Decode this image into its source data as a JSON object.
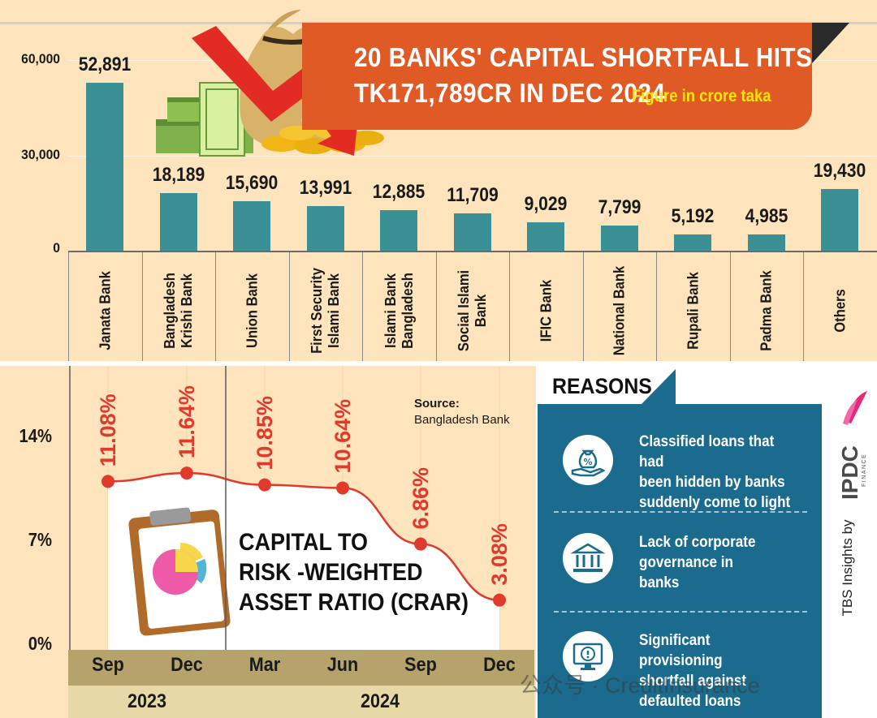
{
  "banner": {
    "title_line1": "20 BANKS' CAPITAL SHORTFALL HITS",
    "title_line2": "TK171,789CR IN DEC 2024",
    "note": "Figure in crore taka"
  },
  "colors": {
    "background": "#fde4bd",
    "banner": "#e05a26",
    "bar": "#3a9095",
    "line": "#e03a2c",
    "reasons_box": "#1a6b8e",
    "month_strip": "#b5a36b",
    "year_strip": "#e7d9a7"
  },
  "chart_data": [
    {
      "type": "bar",
      "ylim": [
        0,
        60000
      ],
      "yticks": [
        "60,000",
        "30,000",
        "0"
      ],
      "categories": [
        "Janata Bank",
        "Bangladesh\nKrishi Bank",
        "Union Bank",
        "First Security\nIslami Bank",
        "Islami Bank\nBangladesh",
        "Social Islami\nBank",
        "IFIC Bank",
        "National Bank",
        "Rupali Bank",
        "Padma Bank",
        "Others"
      ],
      "values": [
        52891,
        18189,
        15690,
        13991,
        12885,
        11709,
        9029,
        7799,
        5192,
        4985,
        19430
      ],
      "value_labels": [
        "52,891",
        "18,189",
        "15,690",
        "13,991",
        "12,885",
        "11,709",
        "9,029",
        "7,799",
        "5,192",
        "4,985",
        "19,430"
      ]
    },
    {
      "type": "line",
      "title": [
        "CAPITAL TO",
        "RISK -WEIGHTED",
        "ASSET RATIO (CRAR)"
      ],
      "x": [
        "Sep",
        "Dec",
        "Mar",
        "Jun",
        "Sep",
        "Dec"
      ],
      "years": [
        {
          "label": "2023",
          "span": 2
        },
        {
          "label": "2024",
          "span": 4
        }
      ],
      "values": [
        11.08,
        11.64,
        10.85,
        10.64,
        6.86,
        3.08
      ],
      "value_labels": [
        "11.08%",
        "11.64%",
        "10.85%",
        "10.64%",
        "6.86%",
        "3.08%"
      ],
      "ylim": [
        0,
        14
      ],
      "yticks": [
        "14%",
        "7%",
        "0%"
      ]
    }
  ],
  "source": {
    "title": "Source:",
    "name": "Bangladesh Bank"
  },
  "reasons": {
    "title": "REASONS",
    "items": [
      {
        "icon": "money-bag-hand-icon",
        "text": "Classified loans that had\nbeen hidden by banks\nsuddenly come to light"
      },
      {
        "icon": "bank-building-icon",
        "text": "Lack of corporate\ngovernance in\nbanks"
      },
      {
        "icon": "warning-monitor-icon",
        "text": "Significant provisioning\nshortfall against\ndefaulted loans"
      }
    ]
  },
  "sponsor": {
    "text": "TBS Insights by",
    "logo": "IPDC",
    "logo_sub": "FINANCE"
  },
  "watermark": "公众号 · CreditInsurance"
}
